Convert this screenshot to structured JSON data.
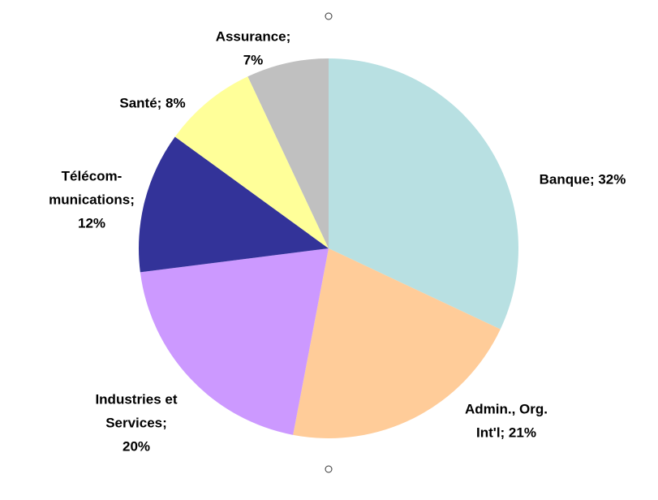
{
  "chart_data": {
    "type": "pie",
    "values": [
      32,
      21,
      20,
      12,
      8,
      7
    ],
    "value_labels": [
      [
        "Banque; 32%"
      ],
      [
        "Admin., Org.",
        "Int'l; 21%"
      ],
      [
        "Industries et",
        "Services;",
        "20%"
      ],
      [
        "Télécom-",
        "munications;",
        "12%"
      ],
      [
        "Santé; 8%"
      ],
      [
        "Assurance;",
        "7%"
      ]
    ],
    "colors": [
      "#b8e0e2",
      "#ffcc99",
      "#cc99ff",
      "#333399",
      "#ffff99",
      "#c0c0c0"
    ]
  }
}
